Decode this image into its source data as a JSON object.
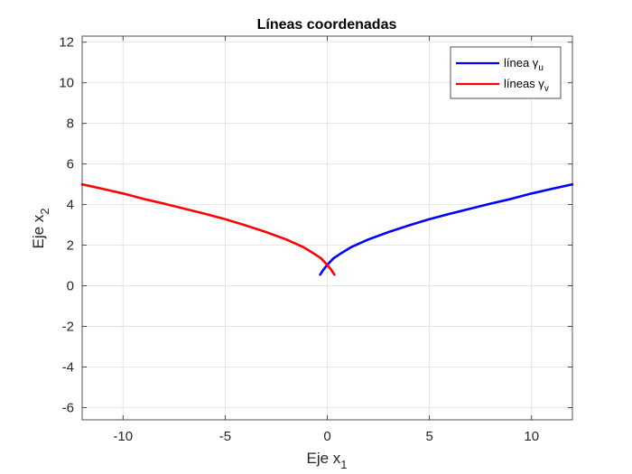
{
  "chart_data": {
    "type": "line",
    "title": "Líneas coordenadas",
    "xlabel": {
      "base": "Eje x",
      "sub": "1"
    },
    "ylabel": {
      "base": "Eje x",
      "sub": "2"
    },
    "xlim": [
      -12,
      12
    ],
    "ylim": [
      -6.6,
      12.3
    ],
    "xticks": [
      -10,
      -5,
      0,
      5,
      10
    ],
    "xtick_labels": [
      "-10",
      "-5",
      "0",
      "5",
      "10"
    ],
    "yticks": [
      -6,
      -4,
      -2,
      0,
      2,
      4,
      6,
      8,
      10,
      12
    ],
    "ytick_labels": [
      "-6",
      "-4",
      "-2",
      "0",
      "2",
      "4",
      "6",
      "8",
      "10",
      "12"
    ],
    "grid": true,
    "legend_position": "top-right",
    "series": [
      {
        "name": "línea γu",
        "legend_base": "línea γ",
        "legend_sub": "u",
        "color": "#0000ff",
        "x": [
          -0.35,
          -0.2,
          0.0,
          0.3,
          0.7,
          1.2,
          2.0,
          3.0,
          4.0,
          5.0,
          6.0,
          7.0,
          8.0,
          9.0,
          10.0,
          11.0,
          12.0
        ],
        "y": [
          0.55,
          0.78,
          1.03,
          1.35,
          1.62,
          1.92,
          2.28,
          2.65,
          2.98,
          3.28,
          3.55,
          3.8,
          4.05,
          4.28,
          4.55,
          4.78,
          5.0
        ]
      },
      {
        "name": "líneas γv",
        "legend_base": "líneas γ",
        "legend_sub": "v",
        "color": "#ff0000",
        "x": [
          0.35,
          0.2,
          0.0,
          -0.3,
          -0.7,
          -1.2,
          -2.0,
          -3.0,
          -4.0,
          -5.0,
          -6.0,
          -7.0,
          -8.0,
          -9.0,
          -10.0,
          -11.0,
          -12.0
        ],
        "y": [
          0.55,
          0.78,
          1.03,
          1.35,
          1.62,
          1.92,
          2.28,
          2.65,
          2.98,
          3.28,
          3.55,
          3.8,
          4.05,
          4.28,
          4.55,
          4.78,
          5.0
        ]
      }
    ]
  }
}
